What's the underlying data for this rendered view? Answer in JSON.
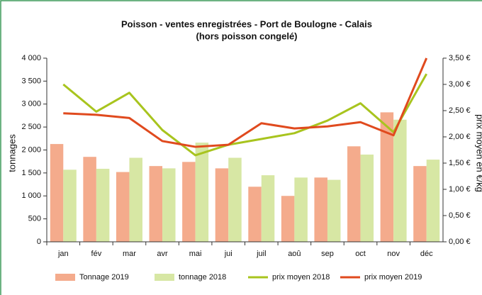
{
  "chart_data": {
    "type": "bar",
    "title": "Poisson - ventes enregistrées - Port de Boulogne - Calais",
    "subtitle": "(hors poisson congelé)",
    "y_label": "tonnages",
    "y2_label": "prix moyen en €/kg",
    "categories": [
      "jan",
      "fév",
      "mar",
      "avr",
      "mai",
      "jui",
      "juil",
      "aoû",
      "sep",
      "oct",
      "nov",
      "déc"
    ],
    "series": [
      {
        "name": "Tonnage 2019",
        "type": "bar",
        "color": "#f4ab8c",
        "values": [
          2130,
          1850,
          1520,
          1650,
          1740,
          1600,
          1200,
          1000,
          1400,
          2080,
          2820,
          1650
        ]
      },
      {
        "name": "tonnage 2018",
        "type": "bar",
        "color": "#d7e7a4",
        "values": [
          1570,
          1590,
          1830,
          1600,
          2160,
          1830,
          1450,
          1400,
          1350,
          1900,
          2660,
          1790
        ]
      },
      {
        "name": "prix moyen 2018",
        "type": "line",
        "axis": "y2",
        "color": "#a8c41e",
        "values": [
          3.0,
          2.48,
          2.84,
          2.13,
          1.65,
          1.85,
          1.96,
          2.07,
          2.31,
          2.64,
          2.09,
          3.2
        ]
      },
      {
        "name": "prix moyen 2019",
        "type": "line",
        "axis": "y2",
        "color": "#e04a1e",
        "values": [
          2.45,
          2.42,
          2.36,
          1.92,
          1.81,
          1.85,
          2.26,
          2.16,
          2.2,
          2.28,
          2.03,
          3.5
        ]
      }
    ],
    "ylim": [
      0,
      4000
    ],
    "yticks": [
      0,
      500,
      {
        "value": 1000,
        "label": "1 000"
      },
      {
        "value": 1500,
        "label": "1 500"
      },
      {
        "value": 2000,
        "label": "2 000"
      },
      {
        "value": 2500,
        "label": "2 500"
      },
      {
        "value": 3000,
        "label": "3 000"
      },
      {
        "value": 3500,
        "label": "3 500"
      },
      {
        "value": 4000,
        "label": "4 000"
      }
    ],
    "y2lim": [
      0,
      3.5
    ],
    "y2ticks": [
      {
        "value": 0,
        "label": "0,00 €"
      },
      {
        "value": 0.5,
        "label": "0,50 €"
      },
      {
        "value": 1,
        "label": "1,00 €"
      },
      {
        "value": 1.5,
        "label": "1,50 €"
      },
      {
        "value": 2,
        "label": "2,00 €"
      },
      {
        "value": 2.5,
        "label": "2,50 €"
      },
      {
        "value": 3,
        "label": "3,00 €"
      },
      {
        "value": 3.5,
        "label": "3,50 €"
      }
    ],
    "legend": "bottom"
  }
}
